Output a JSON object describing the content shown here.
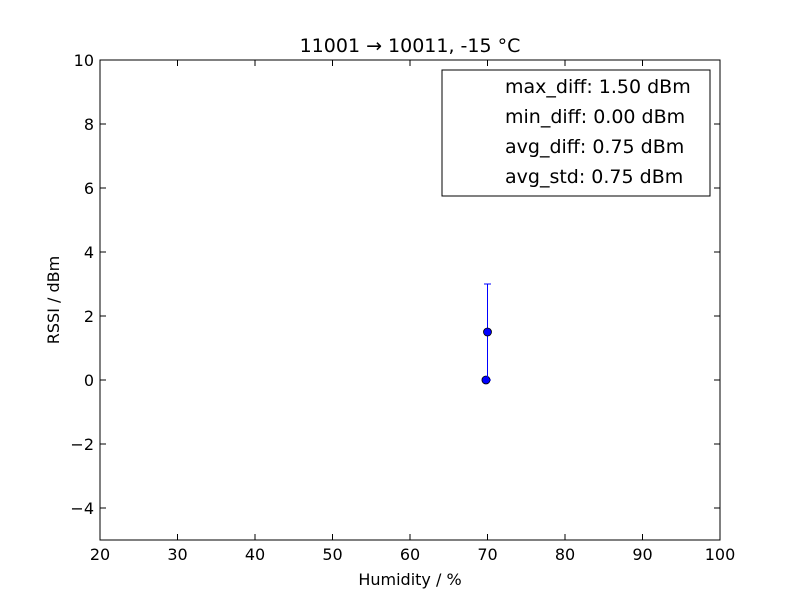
{
  "chart_data": {
    "type": "scatter",
    "title": "11001 → 10011, -15 °C",
    "xlabel": "Humidity / %",
    "ylabel": "RSSI / dBm",
    "xlim": [
      20,
      100
    ],
    "ylim": [
      -5,
      10
    ],
    "xticks": [
      20,
      30,
      40,
      50,
      60,
      70,
      80,
      90,
      100
    ],
    "yticks": [
      -4,
      -2,
      0,
      2,
      4,
      6,
      8,
      10
    ],
    "xtick_labels": [
      "20",
      "30",
      "40",
      "50",
      "60",
      "70",
      "80",
      "90",
      "100"
    ],
    "ytick_labels": [
      "−4",
      "−2",
      "0",
      "2",
      "4",
      "6",
      "8",
      "10"
    ],
    "grid": false,
    "legend_position": "top-right",
    "legend": [
      "max_diff: 1.50 dBm",
      "min_diff: 0.00 dBm",
      "avg_diff: 0.75 dBm",
      "avg_std: 0.75 dBm"
    ],
    "series": [
      {
        "color": "#0000ff",
        "points": [
          {
            "x": 69.8,
            "y": 0.0
          },
          {
            "x": 70.0,
            "y": 1.5,
            "yerr": 1.5
          }
        ]
      }
    ]
  }
}
